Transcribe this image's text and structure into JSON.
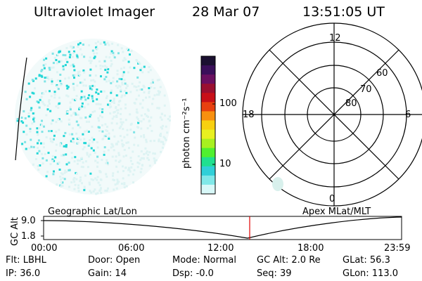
{
  "header": {
    "instrument": "Ultraviolet Imager",
    "date": "28 Mar 07",
    "time": "13:51:05 UT"
  },
  "colorbar": {
    "unit_label": "photon cm⁻²s⁻¹",
    "ticks": [
      "100",
      "10"
    ],
    "colors": [
      "#1a1030",
      "#3a0f5a",
      "#6a1060",
      "#9a1030",
      "#c81018",
      "#e84010",
      "#f89010",
      "#f8d010",
      "#e8f020",
      "#a8f020",
      "#50f030",
      "#20e090",
      "#30d0d8",
      "#80e8e8",
      "#d8f8f8"
    ]
  },
  "polar_plot": {
    "mlt_labels": [
      "12",
      "18",
      "6",
      "0"
    ],
    "lat_labels": [
      "60",
      "70",
      "80"
    ]
  },
  "orbit_panel": {
    "left_title": "Geographic Lat/Lon",
    "right_title": "Apex MLat/MLT",
    "y_axis_label": "GC Alt",
    "y_ticks": [
      "9.0",
      "1.8"
    ],
    "x_ticks": [
      "00:00",
      "06:00",
      "12:00",
      "18:00",
      "23:59"
    ],
    "marker_color": "#e00000"
  },
  "info": {
    "row1": [
      {
        "label": "Flt:",
        "value": "LBHL"
      },
      {
        "label": "Door:",
        "value": "Open"
      },
      {
        "label": "Mode:",
        "value": "Normal"
      },
      {
        "label": "GC Alt:",
        "value": "2.0 Re"
      },
      {
        "label": "GLat:",
        "value": "56.3"
      }
    ],
    "row2": [
      {
        "label": "IP:",
        "value": "36.0"
      },
      {
        "label": "Gain:",
        "value": "14"
      },
      {
        "label": "Dsp:",
        "value": "-0.0"
      },
      {
        "label": "Seq:",
        "value": "39"
      },
      {
        "label": "GLon:",
        "value": "113.0"
      }
    ]
  }
}
